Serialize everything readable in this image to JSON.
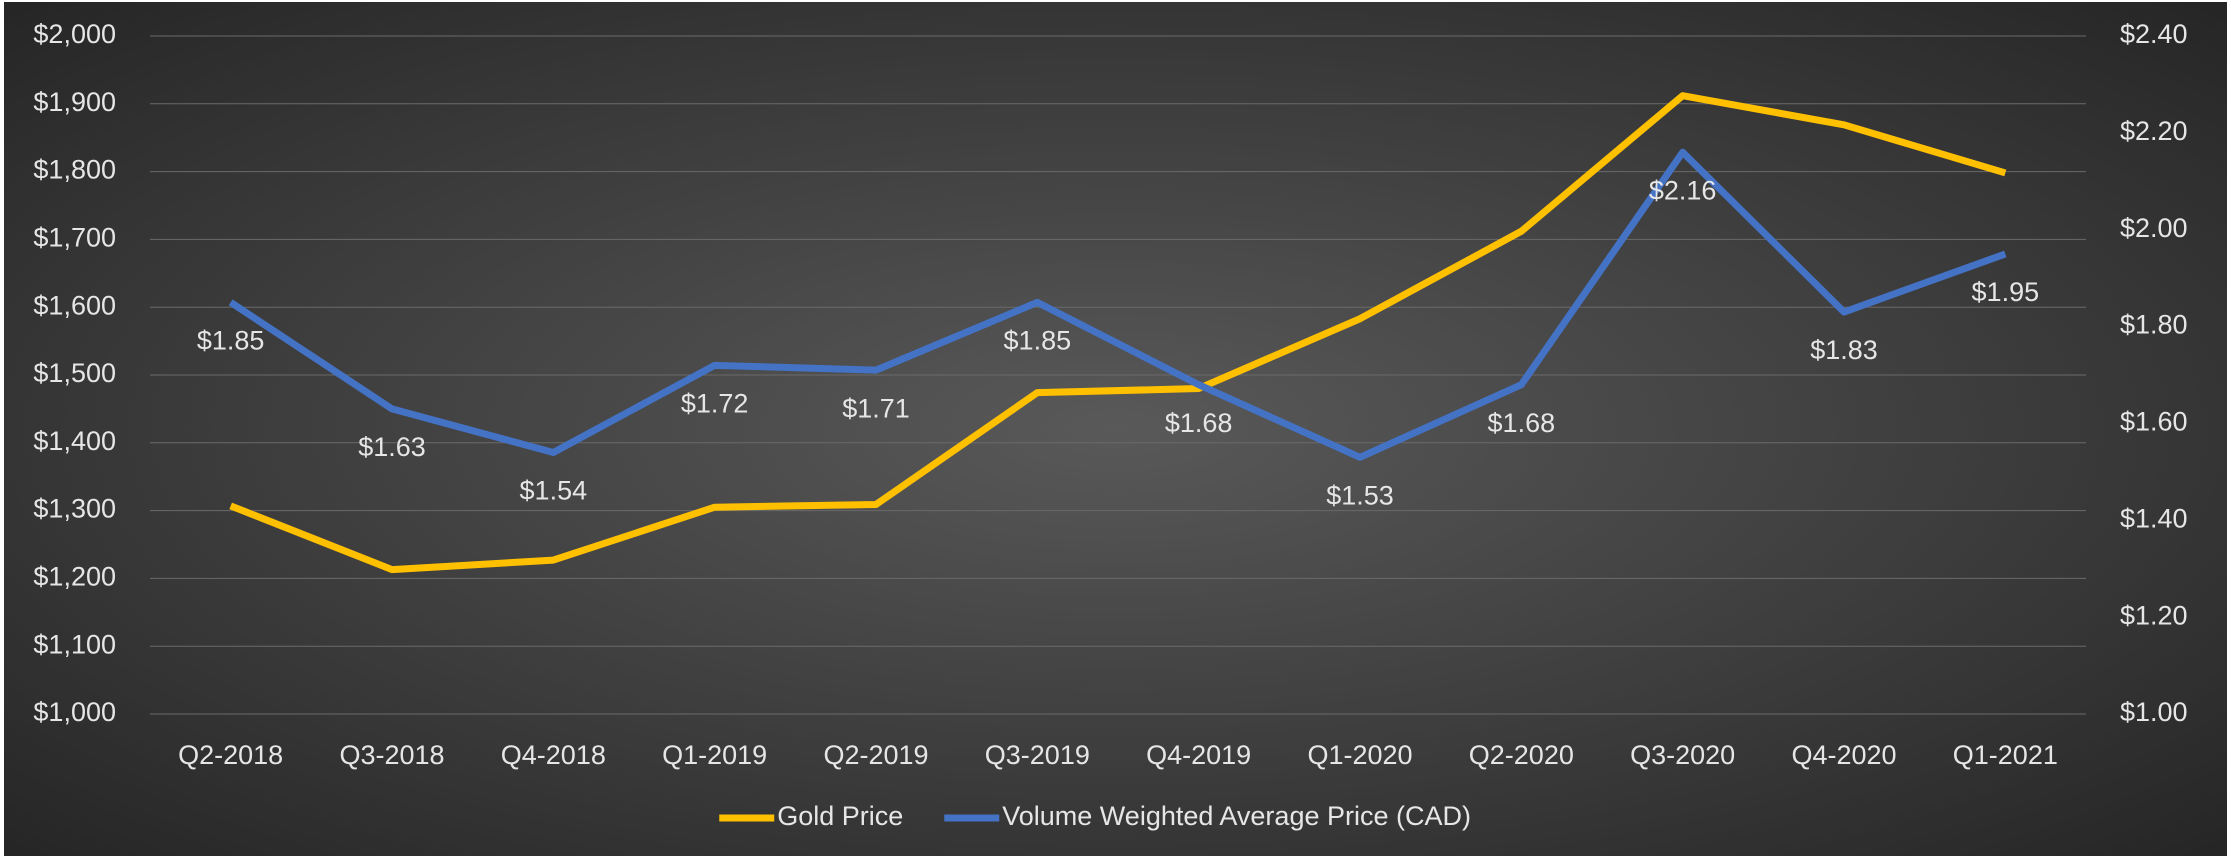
{
  "chart_data": {
    "type": "line",
    "categories": [
      "Q2-2018",
      "Q3-2018",
      "Q4-2018",
      "Q1-2019",
      "Q2-2019",
      "Q3-2019",
      "Q4-2019",
      "Q1-2020",
      "Q2-2020",
      "Q3-2020",
      "Q4-2020",
      "Q1-2021"
    ],
    "series": [
      {
        "name": "Gold Price",
        "color": "#ffc000",
        "values": [
          1307,
          1213,
          1227,
          1305,
          1309,
          1474,
          1480,
          1583,
          1712,
          1912,
          1869,
          1798
        ]
      },
      {
        "name": "Volume Weighted Average Price (CAD)",
        "color": "#4472c4",
        "axis": "y2",
        "values": [
          1.85,
          1.63,
          1.54,
          1.72,
          1.71,
          1.85,
          1.68,
          1.53,
          1.68,
          2.16,
          1.83,
          1.95
        ],
        "value_labels": [
          "$1.85",
          "$1.63",
          "$1.54",
          "$1.72",
          "$1.71",
          "$1.85",
          "$1.68",
          "$1.53",
          "$1.68",
          "$2.16",
          "$1.83",
          "$1.95"
        ]
      }
    ],
    "ylim": [
      1000,
      2000
    ],
    "yticks": [
      {
        "value": 1000,
        "label": "$1,000"
      },
      {
        "value": 1100,
        "label": "$1,100"
      },
      {
        "value": 1200,
        "label": "$1,200"
      },
      {
        "value": 1300,
        "label": "$1,300"
      },
      {
        "value": 1400,
        "label": "$1,400"
      },
      {
        "value": 1500,
        "label": "$1,500"
      },
      {
        "value": 1600,
        "label": "$1,600"
      },
      {
        "value": 1700,
        "label": "$1,700"
      },
      {
        "value": 1800,
        "label": "$1,800"
      },
      {
        "value": 1900,
        "label": "$1,900"
      },
      {
        "value": 2000,
        "label": "$2,000"
      }
    ],
    "y2lim": [
      1.0,
      2.4
    ],
    "y2ticks": [
      {
        "value": 1.0,
        "label": "$1.00"
      },
      {
        "value": 1.2,
        "label": "$1.20"
      },
      {
        "value": 1.4,
        "label": "$1.40"
      },
      {
        "value": 1.6,
        "label": "$1.60"
      },
      {
        "value": 1.8,
        "label": "$1.80"
      },
      {
        "value": 2.0,
        "label": "$2.00"
      },
      {
        "value": 2.2,
        "label": "$2.20"
      },
      {
        "value": 2.4,
        "label": "$2.40"
      }
    ],
    "grid": true,
    "legend": "bottom"
  }
}
